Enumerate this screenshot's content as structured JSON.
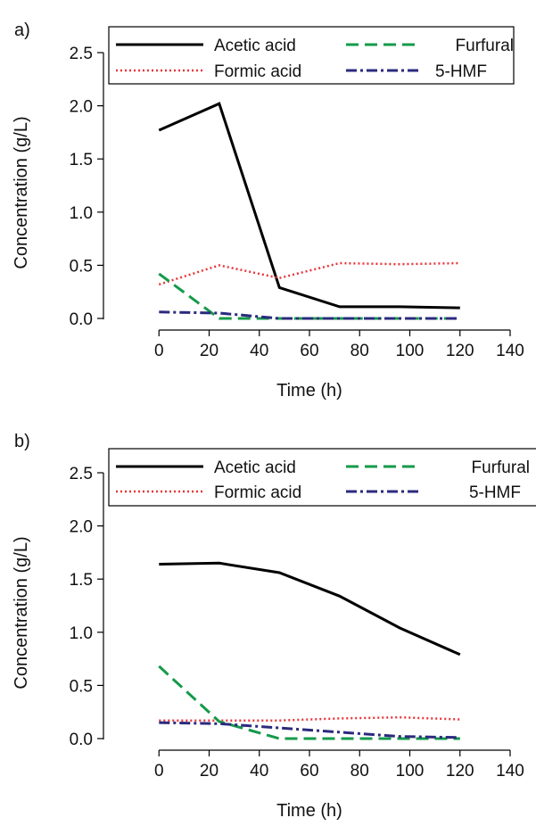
{
  "chart_data": [
    {
      "type": "line",
      "panel_label": "a)",
      "xlabel": "Time (h)",
      "ylabel": "Concentration (g/L)",
      "xlim": [
        -20,
        140
      ],
      "ylim": [
        0.0,
        2.5
      ],
      "xticks": [
        "0",
        "20",
        "40",
        "60",
        "80",
        "100",
        "120",
        "140"
      ],
      "yticks": [
        "0.0",
        "0.5",
        "1.0",
        "1.5",
        "2.0",
        "2.5"
      ],
      "legend_position": "top",
      "x": [
        0,
        24,
        48,
        72,
        96,
        120
      ],
      "series": [
        {
          "name": "Acetic acid",
          "color": "#000000",
          "dash": "solid",
          "values": [
            1.77,
            2.02,
            0.29,
            0.11,
            0.11,
            0.1
          ]
        },
        {
          "name": "Formic acid",
          "color": "#e8363a",
          "dash": "dotted",
          "values": [
            0.32,
            0.5,
            0.38,
            0.52,
            0.51,
            0.52
          ]
        },
        {
          "name": "Furfural",
          "color": "#149a4a",
          "dash": "dashed",
          "values": [
            0.42,
            0.0,
            0.0,
            0.0,
            0.0,
            0.0
          ]
        },
        {
          "name": "5-HMF",
          "color": "#2b2a7e",
          "dash": "dashdot",
          "values": [
            0.06,
            0.05,
            0.0,
            0.0,
            0.0,
            0.0
          ]
        }
      ]
    },
    {
      "type": "line",
      "panel_label": "b)",
      "xlabel": "Time (h)",
      "ylabel": "Concentration (g/L)",
      "xlim": [
        -20,
        140
      ],
      "ylim": [
        0.0,
        2.5
      ],
      "xticks": [
        "0",
        "20",
        "40",
        "60",
        "80",
        "100",
        "120",
        "140"
      ],
      "yticks": [
        "0.0",
        "0.5",
        "1.0",
        "1.5",
        "2.0",
        "2.5"
      ],
      "legend_position": "top",
      "x": [
        0,
        24,
        48,
        72,
        96,
        120
      ],
      "series": [
        {
          "name": "Acetic acid",
          "color": "#000000",
          "dash": "solid",
          "values": [
            1.64,
            1.65,
            1.56,
            1.34,
            1.04,
            0.79
          ]
        },
        {
          "name": "Formic acid",
          "color": "#e8363a",
          "dash": "dotted",
          "values": [
            0.17,
            0.17,
            0.17,
            0.19,
            0.2,
            0.18
          ]
        },
        {
          "name": "Furfural",
          "color": "#149a4a",
          "dash": "dashed",
          "values": [
            0.68,
            0.16,
            0.0,
            0.0,
            0.0,
            0.0
          ]
        },
        {
          "name": "5-HMF",
          "color": "#2b2a7e",
          "dash": "dashdot",
          "values": [
            0.15,
            0.14,
            0.1,
            0.06,
            0.02,
            0.01
          ]
        }
      ]
    }
  ]
}
